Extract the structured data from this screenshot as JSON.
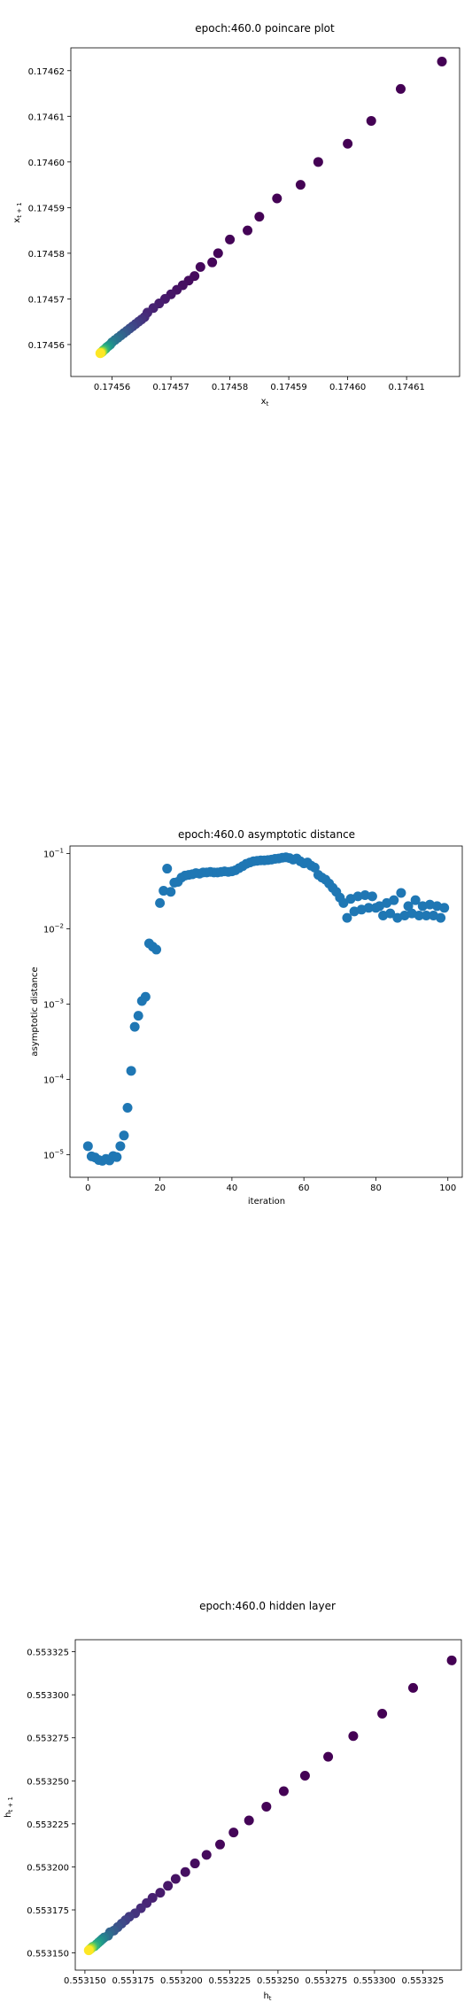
{
  "charts": [
    {
      "type": "scatter",
      "title": "epoch:460.0 poincare plot",
      "xlabel": "x_t",
      "ylabel": "x_{t+1}",
      "xlim": [
        0.174553,
        0.174619
      ],
      "ylim": [
        0.174553,
        0.174625
      ],
      "xticks": [
        0.17456,
        0.17457,
        0.17458,
        0.17459,
        0.1746,
        0.17461
      ],
      "yticks": [
        0.17456,
        0.17457,
        0.17458,
        0.17459,
        0.1746,
        0.17461,
        0.17462
      ],
      "colormap": "viridis",
      "point_x": [
        0.174616,
        0.174609,
        0.174604,
        0.1746,
        0.174595,
        0.174592,
        0.174588,
        0.174585,
        0.174583,
        0.17458,
        0.174578,
        0.174577,
        0.174575,
        0.174574,
        0.174573,
        0.174572,
        0.174571,
        0.17457,
        0.174569,
        0.174568,
        0.174567,
        0.174566,
        0.1745655,
        0.174565,
        0.1745645,
        0.174564,
        0.1745635,
        0.174563,
        0.1745625,
        0.174562,
        0.1745615,
        0.174561,
        0.1745605,
        0.17456,
        0.1745597,
        0.1745594,
        0.1745591,
        0.1745589,
        0.1745587,
        0.1745585,
        0.1745584,
        0.1745583,
        0.1745582,
        0.1745581,
        0.174558
      ],
      "point_y": [
        0.174622,
        0.174616,
        0.174609,
        0.174604,
        0.1746,
        0.174595,
        0.174592,
        0.174588,
        0.174585,
        0.174583,
        0.17458,
        0.174578,
        0.174577,
        0.174575,
        0.174574,
        0.174573,
        0.174572,
        0.174571,
        0.17457,
        0.174569,
        0.174568,
        0.174567,
        0.174566,
        0.1745655,
        0.174565,
        0.1745645,
        0.174564,
        0.1745635,
        0.174563,
        0.1745625,
        0.174562,
        0.1745615,
        0.174561,
        0.1745605,
        0.17456,
        0.1745597,
        0.1745594,
        0.1745591,
        0.1745589,
        0.1745587,
        0.1745585,
        0.1745584,
        0.1745583,
        0.1745582,
        0.1745581
      ]
    },
    {
      "type": "scatter",
      "title": "epoch:460.0 asymptotic distance",
      "xlabel": "iteration",
      "ylabel": "asymptotic distance",
      "xlim": [
        -5,
        104
      ],
      "ylim_log10": [
        -5.3,
        -0.9
      ],
      "yscale": "log",
      "xticks": [
        0,
        20,
        40,
        60,
        80,
        100
      ],
      "yticks_log10": [
        -5,
        -4,
        -3,
        -2,
        -1
      ],
      "color": "#1f77b4",
      "x": [
        0,
        1,
        2,
        3,
        4,
        5,
        6,
        7,
        8,
        9,
        10,
        11,
        12,
        13,
        14,
        15,
        16,
        17,
        18,
        19,
        20,
        21,
        22,
        23,
        24,
        25,
        26,
        27,
        28,
        29,
        30,
        31,
        32,
        33,
        34,
        35,
        36,
        37,
        38,
        39,
        40,
        41,
        42,
        43,
        44,
        45,
        46,
        47,
        48,
        49,
        50,
        51,
        52,
        53,
        54,
        55,
        56,
        57,
        58,
        59,
        60,
        61,
        62,
        63,
        64,
        65,
        66,
        67,
        68,
        69,
        70,
        71,
        72,
        73,
        74,
        75,
        76,
        77,
        78,
        79,
        80,
        81,
        82,
        83,
        84,
        85,
        86,
        87,
        88,
        89,
        90,
        91,
        92,
        93,
        94,
        95,
        96,
        97,
        98,
        99
      ],
      "y": [
        1.3e-05,
        9.5e-06,
        9.2e-06,
        8.5e-06,
        8.3e-06,
        8.8e-06,
        8.4e-06,
        9.6e-06,
        9.3e-06,
        1.3e-05,
        1.8e-05,
        4.2e-05,
        0.00013,
        0.0005,
        0.0007,
        0.0011,
        0.00125,
        0.0064,
        0.0058,
        0.0053,
        0.022,
        0.032,
        0.063,
        0.031,
        0.041,
        0.042,
        0.048,
        0.051,
        0.052,
        0.053,
        0.055,
        0.054,
        0.056,
        0.056,
        0.057,
        0.056,
        0.056,
        0.057,
        0.058,
        0.057,
        0.058,
        0.06,
        0.064,
        0.068,
        0.073,
        0.076,
        0.079,
        0.08,
        0.081,
        0.081,
        0.082,
        0.083,
        0.085,
        0.086,
        0.088,
        0.089,
        0.087,
        0.083,
        0.086,
        0.079,
        0.074,
        0.076,
        0.069,
        0.065,
        0.052,
        0.048,
        0.045,
        0.04,
        0.035,
        0.031,
        0.026,
        0.022,
        0.014,
        0.025,
        0.017,
        0.027,
        0.018,
        0.028,
        0.019,
        0.027,
        0.019,
        0.02,
        0.015,
        0.022,
        0.016,
        0.024,
        0.014,
        0.03,
        0.015,
        0.02,
        0.016,
        0.024,
        0.015,
        0.02,
        0.015,
        0.021,
        0.015,
        0.02,
        0.014,
        0.019
      ]
    },
    {
      "type": "scatter",
      "title": "epoch:460.0 hidden layer",
      "xlabel": "h_t",
      "ylabel": "h_{t+1}",
      "xlim": [
        0.553145,
        0.553345
      ],
      "ylim": [
        0.55314,
        0.553332
      ],
      "xticks": [
        0.55315,
        0.553175,
        0.5532,
        0.553225,
        0.55325,
        0.553275,
        0.5533,
        0.553325
      ],
      "yticks": [
        0.55315,
        0.553175,
        0.5532,
        0.553225,
        0.55325,
        0.553275,
        0.5533,
        0.553325
      ],
      "colormap": "viridis",
      "point_x": [
        0.55334,
        0.55332,
        0.553304,
        0.553289,
        0.553276,
        0.553264,
        0.553253,
        0.553244,
        0.553235,
        0.553227,
        0.55322,
        0.553213,
        0.553207,
        0.553202,
        0.553197,
        0.553193,
        0.553189,
        0.553185,
        0.553182,
        0.553179,
        0.553176,
        0.553173,
        0.553171,
        0.553169,
        0.553167,
        0.553165,
        0.553163,
        0.553162,
        0.55316,
        0.553159,
        0.553158,
        0.553157,
        0.553156,
        0.553155,
        0.553154,
        0.5531535,
        0.553153,
        0.5531525,
        0.553152
      ],
      "point_y": [
        0.55332,
        0.553304,
        0.553289,
        0.553276,
        0.553264,
        0.553253,
        0.553244,
        0.553235,
        0.553227,
        0.55322,
        0.553213,
        0.553207,
        0.553202,
        0.553197,
        0.553193,
        0.553189,
        0.553185,
        0.553182,
        0.553179,
        0.553176,
        0.553173,
        0.553171,
        0.553169,
        0.553167,
        0.553165,
        0.553163,
        0.553162,
        0.55316,
        0.553159,
        0.553158,
        0.553157,
        0.553156,
        0.553155,
        0.553154,
        0.5531535,
        0.553153,
        0.5531525,
        0.553152,
        0.5531515
      ]
    }
  ],
  "tick_text": {
    "c1_x": [
      "0.17456",
      "0.17457",
      "0.17458",
      "0.17459",
      "0.17460",
      "0.17461"
    ],
    "c1_y": [
      "0.17456",
      "0.17457",
      "0.17458",
      "0.17459",
      "0.17460",
      "0.17461",
      "0.17462"
    ],
    "c2_x": [
      "0",
      "20",
      "40",
      "60",
      "80",
      "100"
    ],
    "c2_y": [
      "10",
      "10",
      "10",
      "10",
      "10"
    ],
    "c2_y_exp": [
      "−5",
      "−4",
      "−3",
      "−2",
      "−1"
    ],
    "c3_x": [
      "0.553150",
      "0.553175",
      "0.553200",
      "0.553225",
      "0.553250",
      "0.553275",
      "0.553300",
      "0.553325"
    ],
    "c3_y": [
      "0.553150",
      "0.553175",
      "0.553200",
      "0.553225",
      "0.553250",
      "0.553275",
      "0.553300",
      "0.553325"
    ]
  }
}
